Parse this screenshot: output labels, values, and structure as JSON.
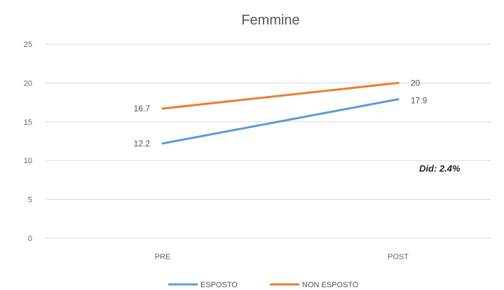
{
  "chart_data": {
    "type": "line",
    "title": "Femmine",
    "categories": [
      "PRE",
      "POST"
    ],
    "series": [
      {
        "name": "ESPOSTO",
        "values": [
          12.2,
          17.9
        ],
        "labels": [
          "12.2",
          "17.9"
        ],
        "color": "#5b9bd5"
      },
      {
        "name": "NON ESPOSTO",
        "values": [
          16.7,
          20
        ],
        "labels": [
          "16.7",
          "20"
        ],
        "color": "#ed7d31"
      }
    ],
    "ylim": [
      0,
      25
    ],
    "yticks": [
      0,
      5,
      10,
      15,
      20,
      25
    ],
    "grid": true,
    "legend": "bottom",
    "annotation": "Did:  2.4%"
  }
}
